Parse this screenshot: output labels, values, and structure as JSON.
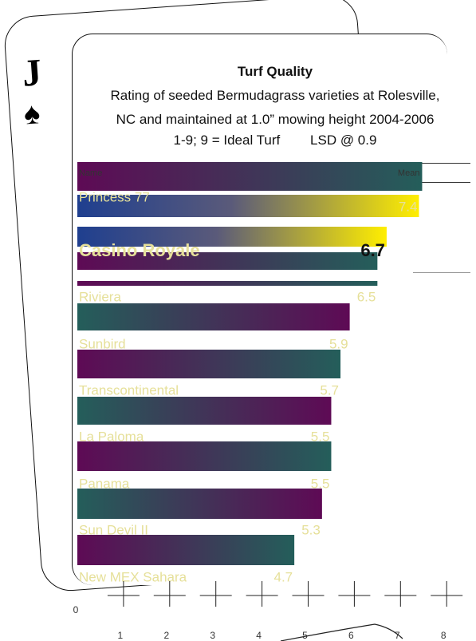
{
  "chart_data": {
    "type": "bar",
    "orientation": "horizontal",
    "title": "Turf Quality",
    "subtitle_lines": [
      "Rating of seeded Bermudagrass varieties at Rolesville,",
      "NC and maintained at 1.0” mowing height 2004-2006",
      "1-9; 9 = Ideal Turf        LSD @ 0.9"
    ],
    "header_labels": {
      "name": "Name",
      "mean": "Mean"
    },
    "categories": [
      "Princess 77",
      "Casino Royale",
      "Riviera",
      "Sunbird",
      "Transcontinental",
      "La Paloma",
      "Panama",
      "Sun Devil II",
      "New MEX Sahara"
    ],
    "value_labels": [
      "7.4",
      "6.7",
      "6.5",
      "5.9",
      "5.7",
      "5.5",
      "5.5",
      "5.3",
      "4.7"
    ],
    "values": [
      7.4,
      6.7,
      6.5,
      5.9,
      5.7,
      5.5,
      5.5,
      5.3,
      4.7
    ],
    "highlight": "Casino Royale",
    "xlim": [
      0,
      8
    ],
    "x_ticks": [
      "0",
      "1",
      "2",
      "3",
      "4",
      "5",
      "6",
      "7",
      "8"
    ],
    "colors": {
      "purple": "#5e0a55",
      "teal": "#245e5a",
      "navy": "#1f3f8f",
      "yellow": "#ffee00",
      "label": "#e6e09a"
    }
  },
  "card": {
    "rank": "J",
    "suit_icon": "spade-icon"
  }
}
